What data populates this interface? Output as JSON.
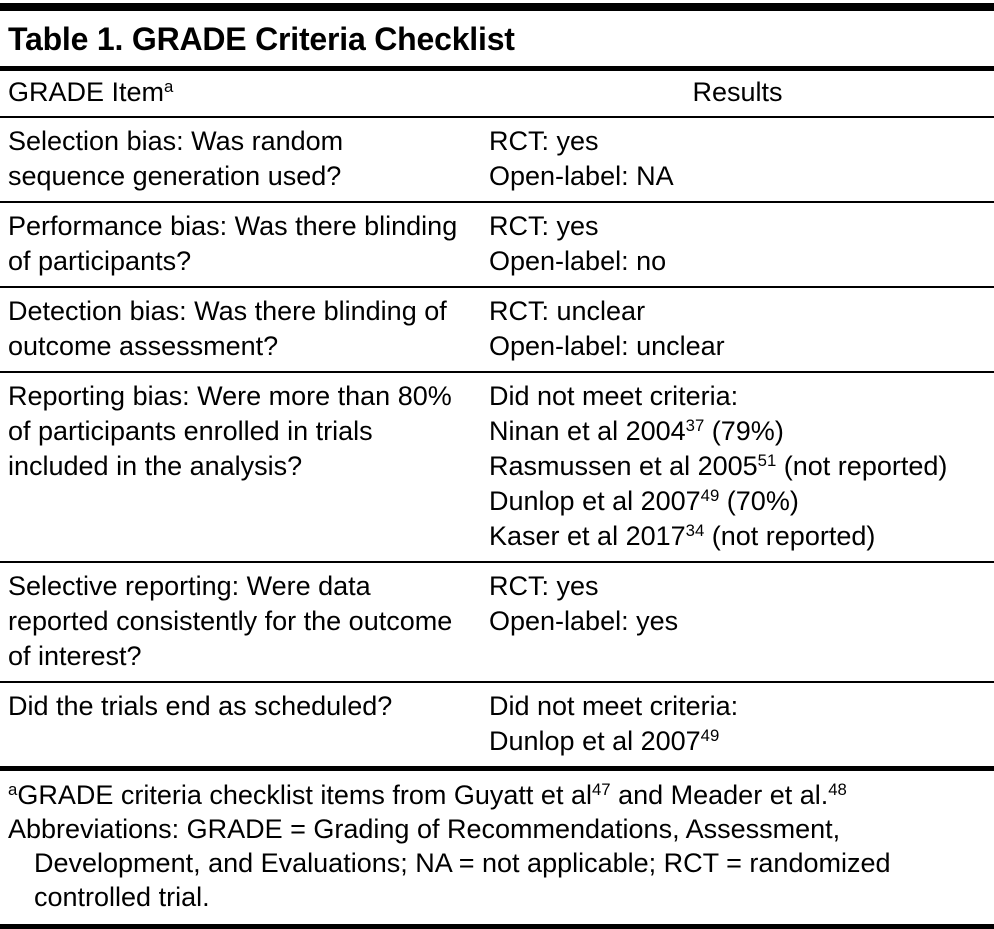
{
  "title": "Table 1. GRADE Criteria Checklist",
  "header": {
    "item_label": "GRADE Item",
    "item_sup": "a",
    "results_label": "Results"
  },
  "rows": [
    {
      "item": "Selection bias: Was random sequence generation used?",
      "results": [
        {
          "pre": "RCT: yes"
        },
        {
          "pre": "Open-label: NA"
        }
      ]
    },
    {
      "item": "Performance bias: Was there blinding of participants?",
      "results": [
        {
          "pre": "RCT: yes"
        },
        {
          "pre": "Open-label: no"
        }
      ]
    },
    {
      "item": "Detection bias: Was there blinding of outcome assessment?",
      "results": [
        {
          "pre": "RCT: unclear"
        },
        {
          "pre": "Open-label: unclear"
        }
      ]
    },
    {
      "item": "Reporting bias: Were more than 80% of participants enrolled in trials included in the analysis?",
      "results": [
        {
          "pre": "Did not meet criteria:"
        },
        {
          "pre": "Ninan et al 2004",
          "sup": "37",
          "post": " (79%)"
        },
        {
          "pre": "Rasmussen et al 2005",
          "sup": "51",
          "post": " (not reported)"
        },
        {
          "pre": "Dunlop et al 2007",
          "sup": "49",
          "post": " (70%)"
        },
        {
          "pre": "Kaser et al 2017",
          "sup": "34",
          "post": " (not reported)"
        }
      ]
    },
    {
      "item": "Selective reporting: Were data reported consistently for the outcome of interest?",
      "results": [
        {
          "pre": "RCT: yes"
        },
        {
          "pre": "Open-label: yes"
        }
      ]
    },
    {
      "item": "Did the trials end as scheduled?",
      "results": [
        {
          "pre": "Did not meet criteria:"
        },
        {
          "pre": "Dunlop et al 2007",
          "sup": "49"
        }
      ]
    }
  ],
  "footnotes": {
    "line1": {
      "marker": "a",
      "part1": "GRADE criteria checklist items from Guyatt et al",
      "sup1": "47",
      "part2": " and Meader et al.",
      "sup2": "48"
    },
    "abbrev_line1": "Abbreviations: GRADE = Grading of Recommendations, Assessment,",
    "abbrev_line2": "Development, and Evaluations; NA = not applicable; RCT = randomized",
    "abbrev_line3": "controlled trial."
  }
}
